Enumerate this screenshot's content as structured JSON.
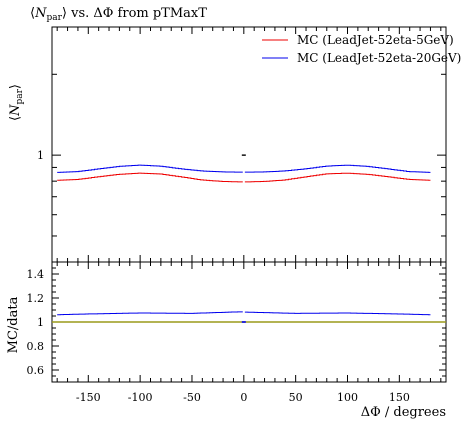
{
  "chart_data": {
    "type": "line",
    "title": "⟨N_par⟩ vs. ΔΦ from pTMaxT",
    "title_parts": {
      "pre": "⟨",
      "var": "N",
      "sub": "par",
      "post": "⟩ vs. ΔΦ from pTMaxT"
    },
    "ylabel_parts": {
      "pre": "⟨",
      "var": "N",
      "sub": "par",
      "post": "⟩"
    },
    "xlabel": "ΔΦ / degrees",
    "ratio_ylabel": "MC/data",
    "xlim": [
      -185,
      195
    ],
    "x_ticks": [
      -150,
      -100,
      -50,
      0,
      50,
      100,
      150
    ],
    "x_tick_labels": [
      "-150",
      "-100",
      "-50",
      "0",
      "50",
      "100",
      "150"
    ],
    "y_scale": "log",
    "ylim": [
      0.4,
      3.0
    ],
    "y_ticks": [
      1
    ],
    "y_tick_labels": [
      "1"
    ],
    "ratio_ylim": [
      0.5,
      1.5
    ],
    "ratio_ticks": [
      0.6,
      0.8,
      1.0,
      1.2,
      1.4
    ],
    "ratio_tick_labels": [
      "0.6",
      "0.8",
      "1",
      "1.2",
      "1.4"
    ],
    "legend_position": "top-right",
    "grid": false,
    "series": [
      {
        "name": "MC (LeadJet-52eta-5GeV)",
        "color": "#ee0000",
        "x": [
          -182,
          -160,
          -140,
          -120,
          -100,
          -80,
          -60,
          -40,
          -20,
          -3,
          3,
          20,
          40,
          60,
          80,
          100,
          120,
          140,
          160,
          182
        ],
        "values": [
          0.805,
          0.812,
          0.83,
          0.848,
          0.857,
          0.851,
          0.83,
          0.808,
          0.798,
          0.795,
          0.795,
          0.798,
          0.808,
          0.83,
          0.851,
          0.857,
          0.848,
          0.83,
          0.812,
          0.805
        ]
      },
      {
        "name": "MC (LeadJet-52eta-20GeV)",
        "color": "#0000ee",
        "x": [
          -182,
          -160,
          -140,
          -120,
          -100,
          -80,
          -60,
          -40,
          -20,
          -3,
          3,
          20,
          40,
          60,
          80,
          100,
          120,
          140,
          160,
          182
        ],
        "values": [
          0.862,
          0.868,
          0.888,
          0.908,
          0.918,
          0.91,
          0.889,
          0.873,
          0.866,
          0.864,
          0.864,
          0.866,
          0.873,
          0.889,
          0.91,
          0.918,
          0.908,
          0.888,
          0.868,
          0.862
        ]
      }
    ],
    "ratio_series": [
      {
        "name": "MC (LeadJet-52eta-20GeV)",
        "color": "#0000ee",
        "x": [
          -182,
          -150,
          -100,
          -50,
          -3,
          3,
          50,
          100,
          150,
          182
        ],
        "values": [
          1.06,
          1.067,
          1.075,
          1.072,
          1.085,
          1.082,
          1.072,
          1.075,
          1.067,
          1.06
        ]
      },
      {
        "name": "reference",
        "color": "#9a9a1a",
        "x": [
          -185,
          195
        ],
        "values": [
          1.0,
          1.0
        ]
      }
    ],
    "data_marker": {
      "x": 0,
      "main_value": 1.0,
      "ratio_value": 1.0
    }
  }
}
